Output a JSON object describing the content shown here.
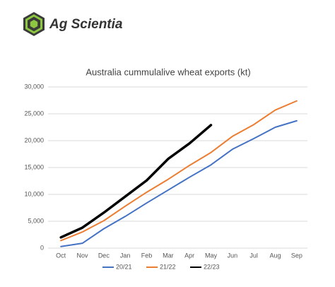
{
  "brand": "Ag Scientia",
  "chart_data": {
    "type": "line",
    "title": "Australia cummulalive wheat exports (kt)",
    "categories": [
      "Oct",
      "Nov",
      "Dec",
      "Jan",
      "Feb",
      "Mar",
      "Apr",
      "May",
      "Jun",
      "Jul",
      "Aug",
      "Sep"
    ],
    "series": [
      {
        "name": "20/21",
        "color": "#4472c4",
        "values": [
          300,
          900,
          3600,
          5900,
          8400,
          10800,
          13200,
          15500,
          18400,
          20400,
          22500,
          23700
        ]
      },
      {
        "name": "21/22",
        "color": "#ed7d31",
        "values": [
          1400,
          3000,
          5100,
          7800,
          10400,
          12800,
          15400,
          17800,
          20800,
          23000,
          25700,
          27400
        ]
      },
      {
        "name": "22/23",
        "color": "#000000",
        "values": [
          2000,
          3800,
          6600,
          9600,
          12600,
          16600,
          19500,
          22900,
          null,
          null,
          null,
          null
        ]
      }
    ],
    "ylim": [
      0,
      30000
    ],
    "yticks": [
      0,
      {
        "value": 5000,
        "label": "5,000"
      },
      {
        "value": 10000,
        "label": "10,000"
      },
      {
        "value": 15000,
        "label": "15,000"
      },
      {
        "value": 20000,
        "label": "20,000"
      },
      {
        "value": 25000,
        "label": "25,000"
      },
      {
        "value": 30000,
        "label": "30,000"
      }
    ],
    "grid": true,
    "legend": "bottom"
  }
}
